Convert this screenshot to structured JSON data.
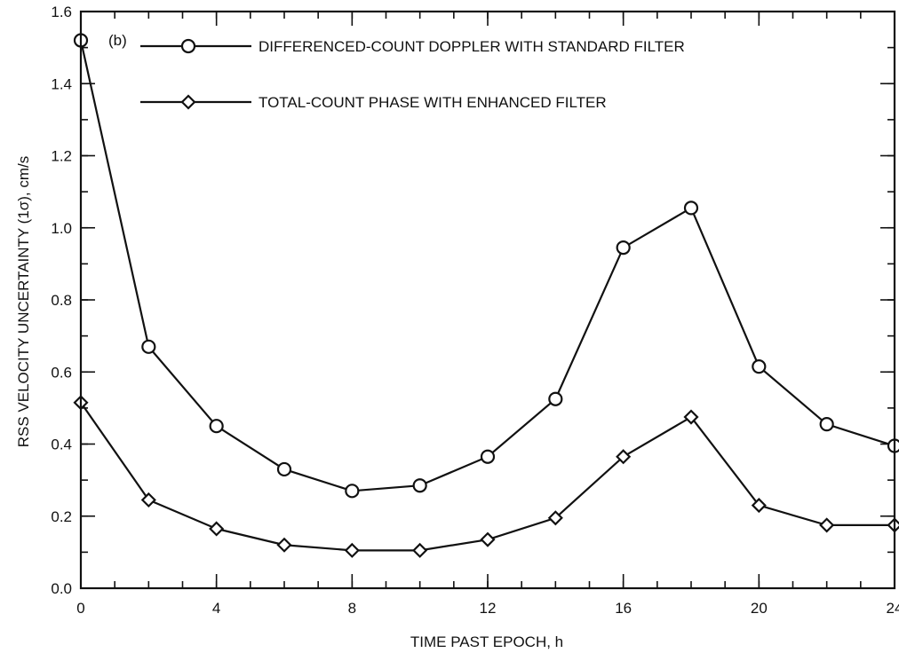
{
  "chart_data": {
    "type": "line",
    "panel_label": "(b)",
    "xlabel": "TIME PAST EPOCH, h",
    "ylabel": "RSS VELOCITY UNCERTAINTY (1σ), cm/s",
    "xlim": [
      0,
      24
    ],
    "ylim": [
      0,
      1.6
    ],
    "x_ticks_major": [
      0,
      4,
      8,
      12,
      16,
      20,
      24
    ],
    "x_tick_labels": [
      "0",
      "4",
      "8",
      "12",
      "16",
      "20",
      "24"
    ],
    "y_ticks_major": [
      0.0,
      0.2,
      0.4,
      0.6,
      0.8,
      1.0,
      1.2,
      1.4,
      1.6
    ],
    "y_tick_labels": [
      "0.0",
      "0.2",
      "0.4",
      "0.6",
      "0.8",
      "1.0",
      "1.2",
      "1.4",
      "1.6"
    ],
    "x_minor_step": 1,
    "y_minor_step": 0.1,
    "grid": false,
    "legend_position": "top-center",
    "x": [
      0,
      2,
      4,
      6,
      8,
      10,
      12,
      14,
      16,
      18,
      20,
      22,
      24
    ],
    "series": [
      {
        "name": "DIFFERENCED-COUNT DOPPLER WITH STANDARD FILTER",
        "marker": "circle",
        "values": [
          1.52,
          0.67,
          0.45,
          0.33,
          0.27,
          0.285,
          0.365,
          0.525,
          0.945,
          1.055,
          0.615,
          0.455,
          0.395
        ]
      },
      {
        "name": "TOTAL-COUNT PHASE WITH ENHANCED FILTER",
        "marker": "diamond",
        "values": [
          0.515,
          0.245,
          0.165,
          0.12,
          0.105,
          0.105,
          0.135,
          0.195,
          0.365,
          0.475,
          0.23,
          0.175,
          0.175
        ]
      }
    ]
  }
}
